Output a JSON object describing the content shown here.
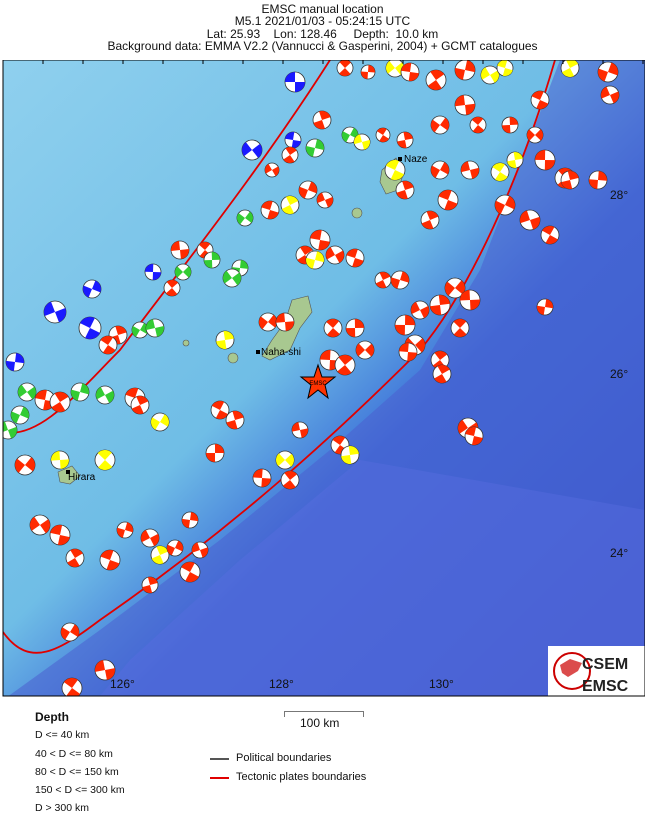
{
  "header": {
    "title": "EMSC manual location",
    "event_line": "M5.1  2021/01/03 - 05:24:15 UTC",
    "location_line": "Lat: 25.93    Lon: 128.46     Depth:  10.0 km",
    "background_line": "Background data: EMMA V2.2 (Vannucci & Gasperini, 2004) + GCMT catalogues"
  },
  "map": {
    "lon_labels": [
      "126°",
      "128°",
      "130°"
    ],
    "lat_labels": [
      "28°",
      "26°",
      "24°"
    ],
    "place_labels": [
      "Naze",
      "Naha-shi",
      "Hirara"
    ],
    "epicenter_label": "EMSC",
    "epicenter": {
      "lat": 25.93,
      "lon": 128.46
    },
    "logo_text": [
      "CSEM",
      "EMSC"
    ],
    "colors": {
      "plate_boundary": "#e00000",
      "political_boundary": "#555555",
      "depth_shallow": "#ff2a00",
      "depth_40_80": "#ffff00",
      "depth_80_150": "#33cc33",
      "depth_150_300": "#1a1aff"
    }
  },
  "legend": {
    "depth_title": "Depth",
    "depth_classes": [
      "D <= 40 km",
      "40 < D <= 80 km",
      "80 < D <= 150 km",
      "150 < D <= 300 km",
      "D > 300 km"
    ],
    "scale_label": "100 km",
    "lines": [
      "Political boundaries",
      "Tectonic plates boundaries"
    ]
  }
}
